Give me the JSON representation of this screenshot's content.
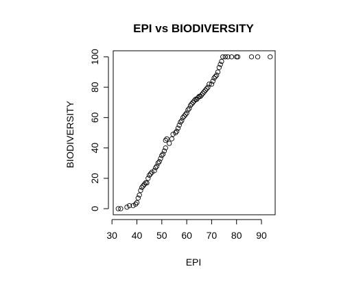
{
  "chart_data": {
    "type": "scatter",
    "title": "EPI vs BIODIVERSITY",
    "xlabel": "EPI",
    "ylabel": "BIODIVERSITY",
    "xlim": [
      30.5,
      95.5
    ],
    "ylim": [
      -4,
      104
    ],
    "x_ticks": [
      30,
      40,
      50,
      60,
      70,
      80,
      90
    ],
    "y_ticks": [
      0,
      20,
      40,
      60,
      80,
      100
    ],
    "grid": false,
    "legend": "none",
    "marker": "open-circle",
    "points": [
      {
        "x": 32.5,
        "y": 0
      },
      {
        "x": 33.5,
        "y": 0
      },
      {
        "x": 36.0,
        "y": 1
      },
      {
        "x": 37.0,
        "y": 2
      },
      {
        "x": 38.5,
        "y": 2
      },
      {
        "x": 39.5,
        "y": 3
      },
      {
        "x": 40.0,
        "y": 4
      },
      {
        "x": 40.5,
        "y": 7
      },
      {
        "x": 41.0,
        "y": 9
      },
      {
        "x": 41.5,
        "y": 12
      },
      {
        "x": 42.0,
        "y": 14
      },
      {
        "x": 42.5,
        "y": 15
      },
      {
        "x": 43.0,
        "y": 16
      },
      {
        "x": 43.5,
        "y": 17
      },
      {
        "x": 44.0,
        "y": 17
      },
      {
        "x": 44.5,
        "y": 20
      },
      {
        "x": 45.0,
        "y": 22
      },
      {
        "x": 45.5,
        "y": 23
      },
      {
        "x": 46.0,
        "y": 24
      },
      {
        "x": 47.0,
        "y": 25
      },
      {
        "x": 47.5,
        "y": 27
      },
      {
        "x": 48.0,
        "y": 28
      },
      {
        "x": 48.5,
        "y": 30
      },
      {
        "x": 49.0,
        "y": 31
      },
      {
        "x": 49.5,
        "y": 33
      },
      {
        "x": 50.0,
        "y": 35
      },
      {
        "x": 50.5,
        "y": 36
      },
      {
        "x": 51.0,
        "y": 38
      },
      {
        "x": 51.5,
        "y": 40
      },
      {
        "x": 51.5,
        "y": 45
      },
      {
        "x": 52.0,
        "y": 46
      },
      {
        "x": 53.0,
        "y": 43
      },
      {
        "x": 54.0,
        "y": 46
      },
      {
        "x": 54.5,
        "y": 49
      },
      {
        "x": 55.5,
        "y": 50
      },
      {
        "x": 56.0,
        "y": 51
      },
      {
        "x": 56.5,
        "y": 53
      },
      {
        "x": 57.0,
        "y": 55
      },
      {
        "x": 57.5,
        "y": 57
      },
      {
        "x": 58.0,
        "y": 58
      },
      {
        "x": 58.5,
        "y": 60
      },
      {
        "x": 59.0,
        "y": 61
      },
      {
        "x": 59.5,
        "y": 62
      },
      {
        "x": 60.0,
        "y": 63
      },
      {
        "x": 60.5,
        "y": 65
      },
      {
        "x": 61.0,
        "y": 66
      },
      {
        "x": 61.5,
        "y": 68
      },
      {
        "x": 62.0,
        "y": 69
      },
      {
        "x": 62.5,
        "y": 70
      },
      {
        "x": 63.0,
        "y": 71
      },
      {
        "x": 63.5,
        "y": 72
      },
      {
        "x": 64.0,
        "y": 72
      },
      {
        "x": 64.5,
        "y": 73
      },
      {
        "x": 65.0,
        "y": 74
      },
      {
        "x": 65.5,
        "y": 74
      },
      {
        "x": 66.0,
        "y": 75
      },
      {
        "x": 66.5,
        "y": 76
      },
      {
        "x": 67.0,
        "y": 77
      },
      {
        "x": 67.5,
        "y": 78
      },
      {
        "x": 68.0,
        "y": 79
      },
      {
        "x": 68.5,
        "y": 80
      },
      {
        "x": 69.0,
        "y": 82
      },
      {
        "x": 70.0,
        "y": 82
      },
      {
        "x": 70.5,
        "y": 84
      },
      {
        "x": 71.0,
        "y": 86
      },
      {
        "x": 71.5,
        "y": 87
      },
      {
        "x": 72.0,
        "y": 88
      },
      {
        "x": 72.5,
        "y": 90
      },
      {
        "x": 73.0,
        "y": 93
      },
      {
        "x": 73.5,
        "y": 95
      },
      {
        "x": 74.0,
        "y": 97
      },
      {
        "x": 74.5,
        "y": 100
      },
      {
        "x": 75.5,
        "y": 100
      },
      {
        "x": 76.5,
        "y": 100
      },
      {
        "x": 78.0,
        "y": 100
      },
      {
        "x": 80.0,
        "y": 100
      },
      {
        "x": 80.5,
        "y": 100
      },
      {
        "x": 86.0,
        "y": 100
      },
      {
        "x": 88.5,
        "y": 100
      },
      {
        "x": 93.5,
        "y": 100
      }
    ]
  }
}
